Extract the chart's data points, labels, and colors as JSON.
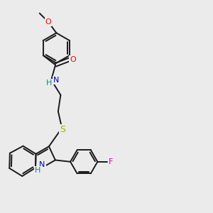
{
  "bg_color": "#ebebeb",
  "bond_color": "#1a1a1a",
  "bond_width": 1.4,
  "atom_colors": {
    "O": "#ff0000",
    "N_amide": "#0000cc",
    "N_indole": "#0000cc",
    "S": "#aaaa00",
    "F": "#cc00cc",
    "H": "#008888"
  },
  "figsize": [
    3.0,
    3.0
  ],
  "dpi": 100
}
